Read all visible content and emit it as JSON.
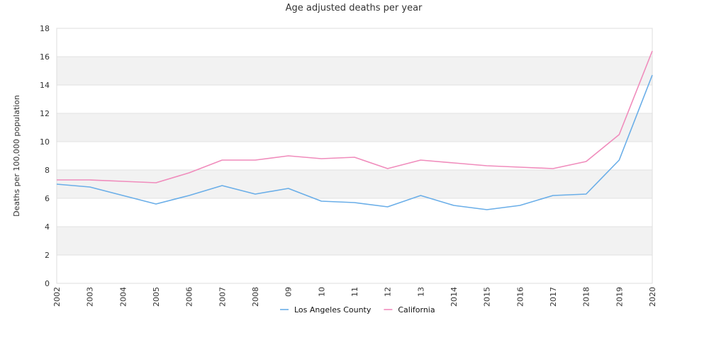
{
  "chart_data": {
    "type": "line",
    "title": "Age adjusted deaths per year",
    "xlabel": "",
    "ylabel": "Deaths per 100,000 population",
    "categories": [
      "2002",
      "2003",
      "2004",
      "2005",
      "2006",
      "2007",
      "2008",
      "09",
      "10",
      "11",
      "12",
      "13",
      "2014",
      "2015",
      "2016",
      "2017",
      "2018",
      "2019",
      "2020"
    ],
    "ylim": [
      0,
      18
    ],
    "yticks": [
      0,
      2,
      4,
      6,
      8,
      10,
      12,
      14,
      16,
      18
    ],
    "grid": "horizontal bands",
    "legend_position": "bottom-center",
    "series": [
      {
        "name": "Los Angeles County",
        "color": "#6aaee8",
        "values": [
          7.0,
          6.8,
          6.2,
          5.6,
          6.2,
          6.9,
          6.3,
          6.7,
          5.8,
          5.7,
          5.4,
          6.2,
          5.5,
          5.2,
          5.5,
          6.2,
          6.3,
          8.7,
          14.7
        ]
      },
      {
        "name": "California",
        "color": "#f08cbc",
        "values": [
          7.3,
          7.3,
          7.2,
          7.1,
          7.8,
          8.7,
          8.7,
          9.0,
          8.8,
          8.9,
          8.1,
          8.7,
          8.5,
          8.3,
          8.2,
          8.1,
          8.6,
          10.5,
          16.4
        ]
      }
    ]
  }
}
